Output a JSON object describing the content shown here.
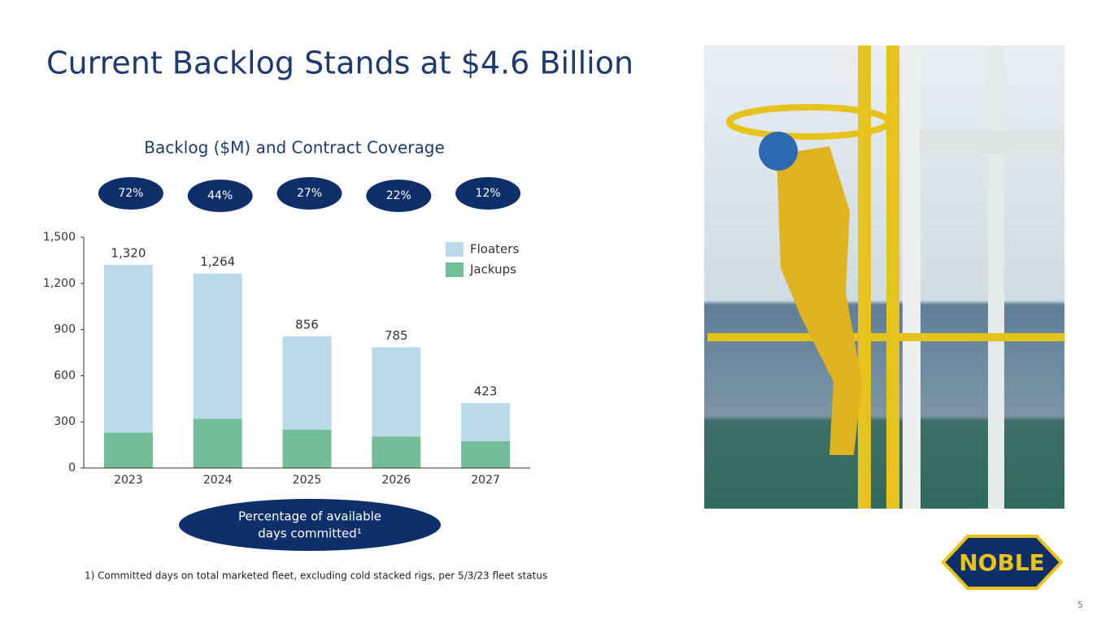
{
  "title": "Current Backlog Stands at $4.6 Billion",
  "chart_data": {
    "type": "bar",
    "stacked": true,
    "title": "Backlog ($M) and Contract Coverage",
    "categories": [
      "2023",
      "2024",
      "2025",
      "2026",
      "2027"
    ],
    "series": [
      {
        "name": "Jackups",
        "color": "#72be99",
        "values": [
          230,
          320,
          250,
          205,
          175
        ]
      },
      {
        "name": "Floaters",
        "color": "#badaeb",
        "values": [
          1090,
          944,
          606,
          580,
          248
        ]
      }
    ],
    "totals": {
      "values": [
        1320,
        1264,
        856,
        785,
        423
      ],
      "value_labels": [
        "1,320",
        "1,264",
        "856",
        "785",
        "423"
      ]
    },
    "coverage": {
      "color": "#0f2f6b",
      "values": [
        72,
        44,
        27,
        22,
        12
      ],
      "value_labels": [
        "72%",
        "44%",
        "27%",
        "22%",
        "12%"
      ]
    },
    "callout": [
      "Percentage of available",
      "days committed¹"
    ],
    "ylim": [
      0,
      1500
    ],
    "yticks": [
      0,
      300,
      600,
      900,
      {
        "value": 1200,
        "label": "1,200"
      },
      {
        "value": 1500,
        "label": "1,500"
      }
    ],
    "legend": "upper right"
  },
  "footnote": "1) Committed days on total marketed fleet, excluding cold stacked rigs, per 5/3/23 fleet status",
  "logo": "NOBLE",
  "page_number": "5"
}
